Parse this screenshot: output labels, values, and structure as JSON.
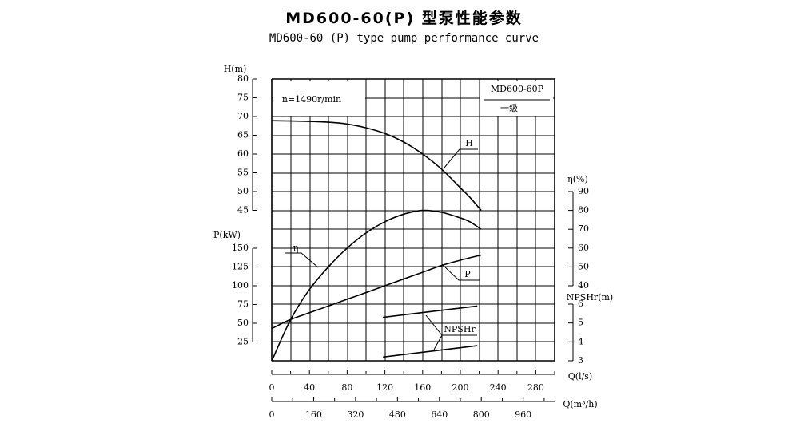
{
  "header": {
    "title": "MD600-60(P) 型泵性能参数",
    "subtitle": "MD600-60 (P) type pump performance curve"
  },
  "chart_data": {
    "type": "line",
    "x_flow_ls": {
      "label": "Q(l/s)",
      "range": [
        0,
        300
      ],
      "ticks": [
        0,
        40,
        80,
        120,
        160,
        200,
        240,
        280
      ]
    },
    "x_flow_m3h": {
      "label": "Q(m³/h)",
      "range": [
        0,
        1080
      ],
      "ticks": [
        0,
        160,
        320,
        480,
        640,
        800,
        960
      ]
    },
    "head_axis": {
      "label": "H(m)",
      "range": [
        45,
        80
      ],
      "ticks": [
        45,
        50,
        55,
        60,
        65,
        70,
        75,
        80
      ]
    },
    "power_axis": {
      "label": "P(kW)",
      "range": [
        0,
        150
      ],
      "ticks": [
        25,
        50,
        75,
        100,
        125,
        150
      ]
    },
    "efficiency_axis": {
      "label": "η(%)",
      "range": [
        40,
        90
      ],
      "ticks": [
        40,
        50,
        60,
        70,
        80,
        90
      ]
    },
    "npshr_axis": {
      "label": "NPSHr(m)",
      "range": [
        3,
        6
      ],
      "ticks": [
        3,
        4,
        5,
        6
      ]
    },
    "annotations": {
      "speed": "n=1490r/min",
      "model": "MD600-60P",
      "stage": "一级"
    },
    "series": [
      {
        "name": "H",
        "axis": "head",
        "x": [
          0,
          20,
          40,
          60,
          80,
          100,
          120,
          140,
          160,
          180,
          200,
          210,
          222
        ],
        "y": [
          68.9,
          68.8,
          68.7,
          68.5,
          68.0,
          67.0,
          65.5,
          63.2,
          60.0,
          56.0,
          51.0,
          48.5,
          45.0
        ]
      },
      {
        "name": "η",
        "axis": "efficiency",
        "x": [
          0,
          20,
          40,
          60,
          80,
          100,
          120,
          140,
          160,
          180,
          200,
          210,
          222
        ],
        "y": [
          0,
          22,
          38,
          50,
          60,
          68,
          74,
          78,
          80,
          79,
          76,
          74,
          70
        ]
      },
      {
        "name": "P",
        "axis": "power",
        "x": [
          0,
          20,
          40,
          60,
          80,
          100,
          120,
          140,
          160,
          180,
          200,
          222
        ],
        "y": [
          43,
          55,
          64,
          73,
          82,
          91,
          100,
          109,
          118,
          127,
          134,
          141
        ]
      },
      {
        "name": "NPSHr",
        "axis": "npshr",
        "x": [
          118,
          218
        ],
        "y": [
          5.3,
          5.9
        ]
      },
      {
        "name": "",
        "axis": "npshr",
        "x": [
          118,
          218
        ],
        "y": [
          3.2,
          3.8
        ]
      }
    ]
  }
}
